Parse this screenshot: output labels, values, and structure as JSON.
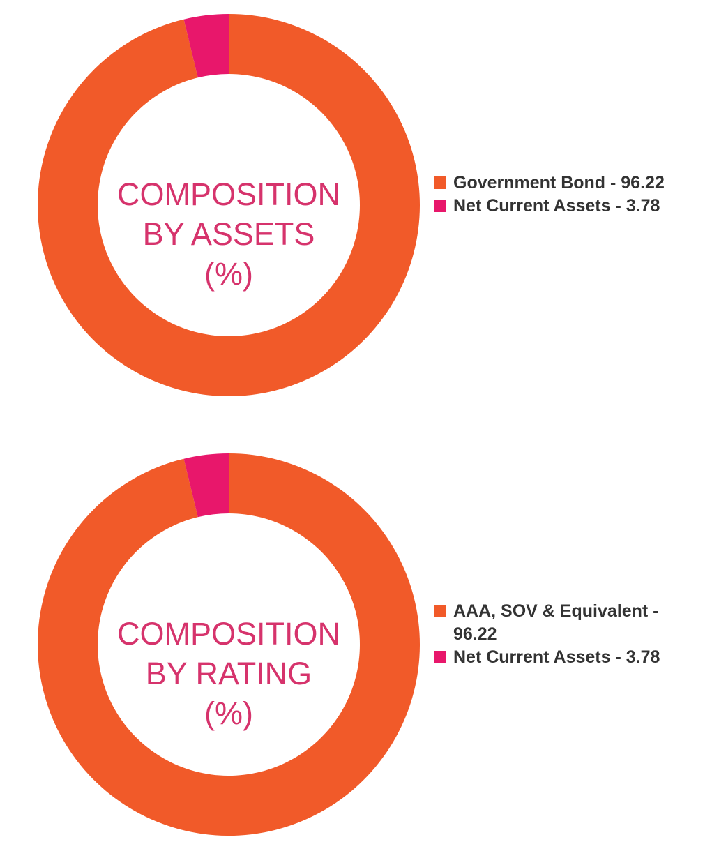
{
  "colors": {
    "orange": "#f15a29",
    "pink": "#e8176b",
    "label_pink": "#d6336c",
    "legend_text": "#333333"
  },
  "charts": [
    {
      "center_label": [
        "COMPOSITION",
        "BY ASSETS",
        "(%)"
      ],
      "legend": [
        {
          "text": "Government Bond - 96.22",
          "color": "#f15a29"
        },
        {
          "text": "Net Current Assets - 3.78",
          "color": "#e8176b"
        }
      ]
    },
    {
      "center_label": [
        "COMPOSITION",
        "BY RATING",
        "(%)"
      ],
      "legend": [
        {
          "text": "AAA, SOV & Equivalent - 96.22",
          "color": "#f15a29"
        },
        {
          "text": "Net Current Assets - 3.78",
          "color": "#e8176b"
        }
      ]
    }
  ],
  "chart_data": [
    {
      "type": "pie",
      "title": "COMPOSITION BY ASSETS (%)",
      "categories": [
        "Government Bond",
        "Net Current Assets"
      ],
      "values": [
        96.22,
        3.78
      ],
      "colors": [
        "#f15a29",
        "#e8176b"
      ],
      "legend": "right"
    },
    {
      "type": "pie",
      "title": "COMPOSITION BY RATING (%)",
      "categories": [
        "AAA, SOV & Equivalent",
        "Net Current Assets"
      ],
      "values": [
        96.22,
        3.78
      ],
      "colors": [
        "#f15a29",
        "#e8176b"
      ],
      "legend": "right"
    }
  ]
}
